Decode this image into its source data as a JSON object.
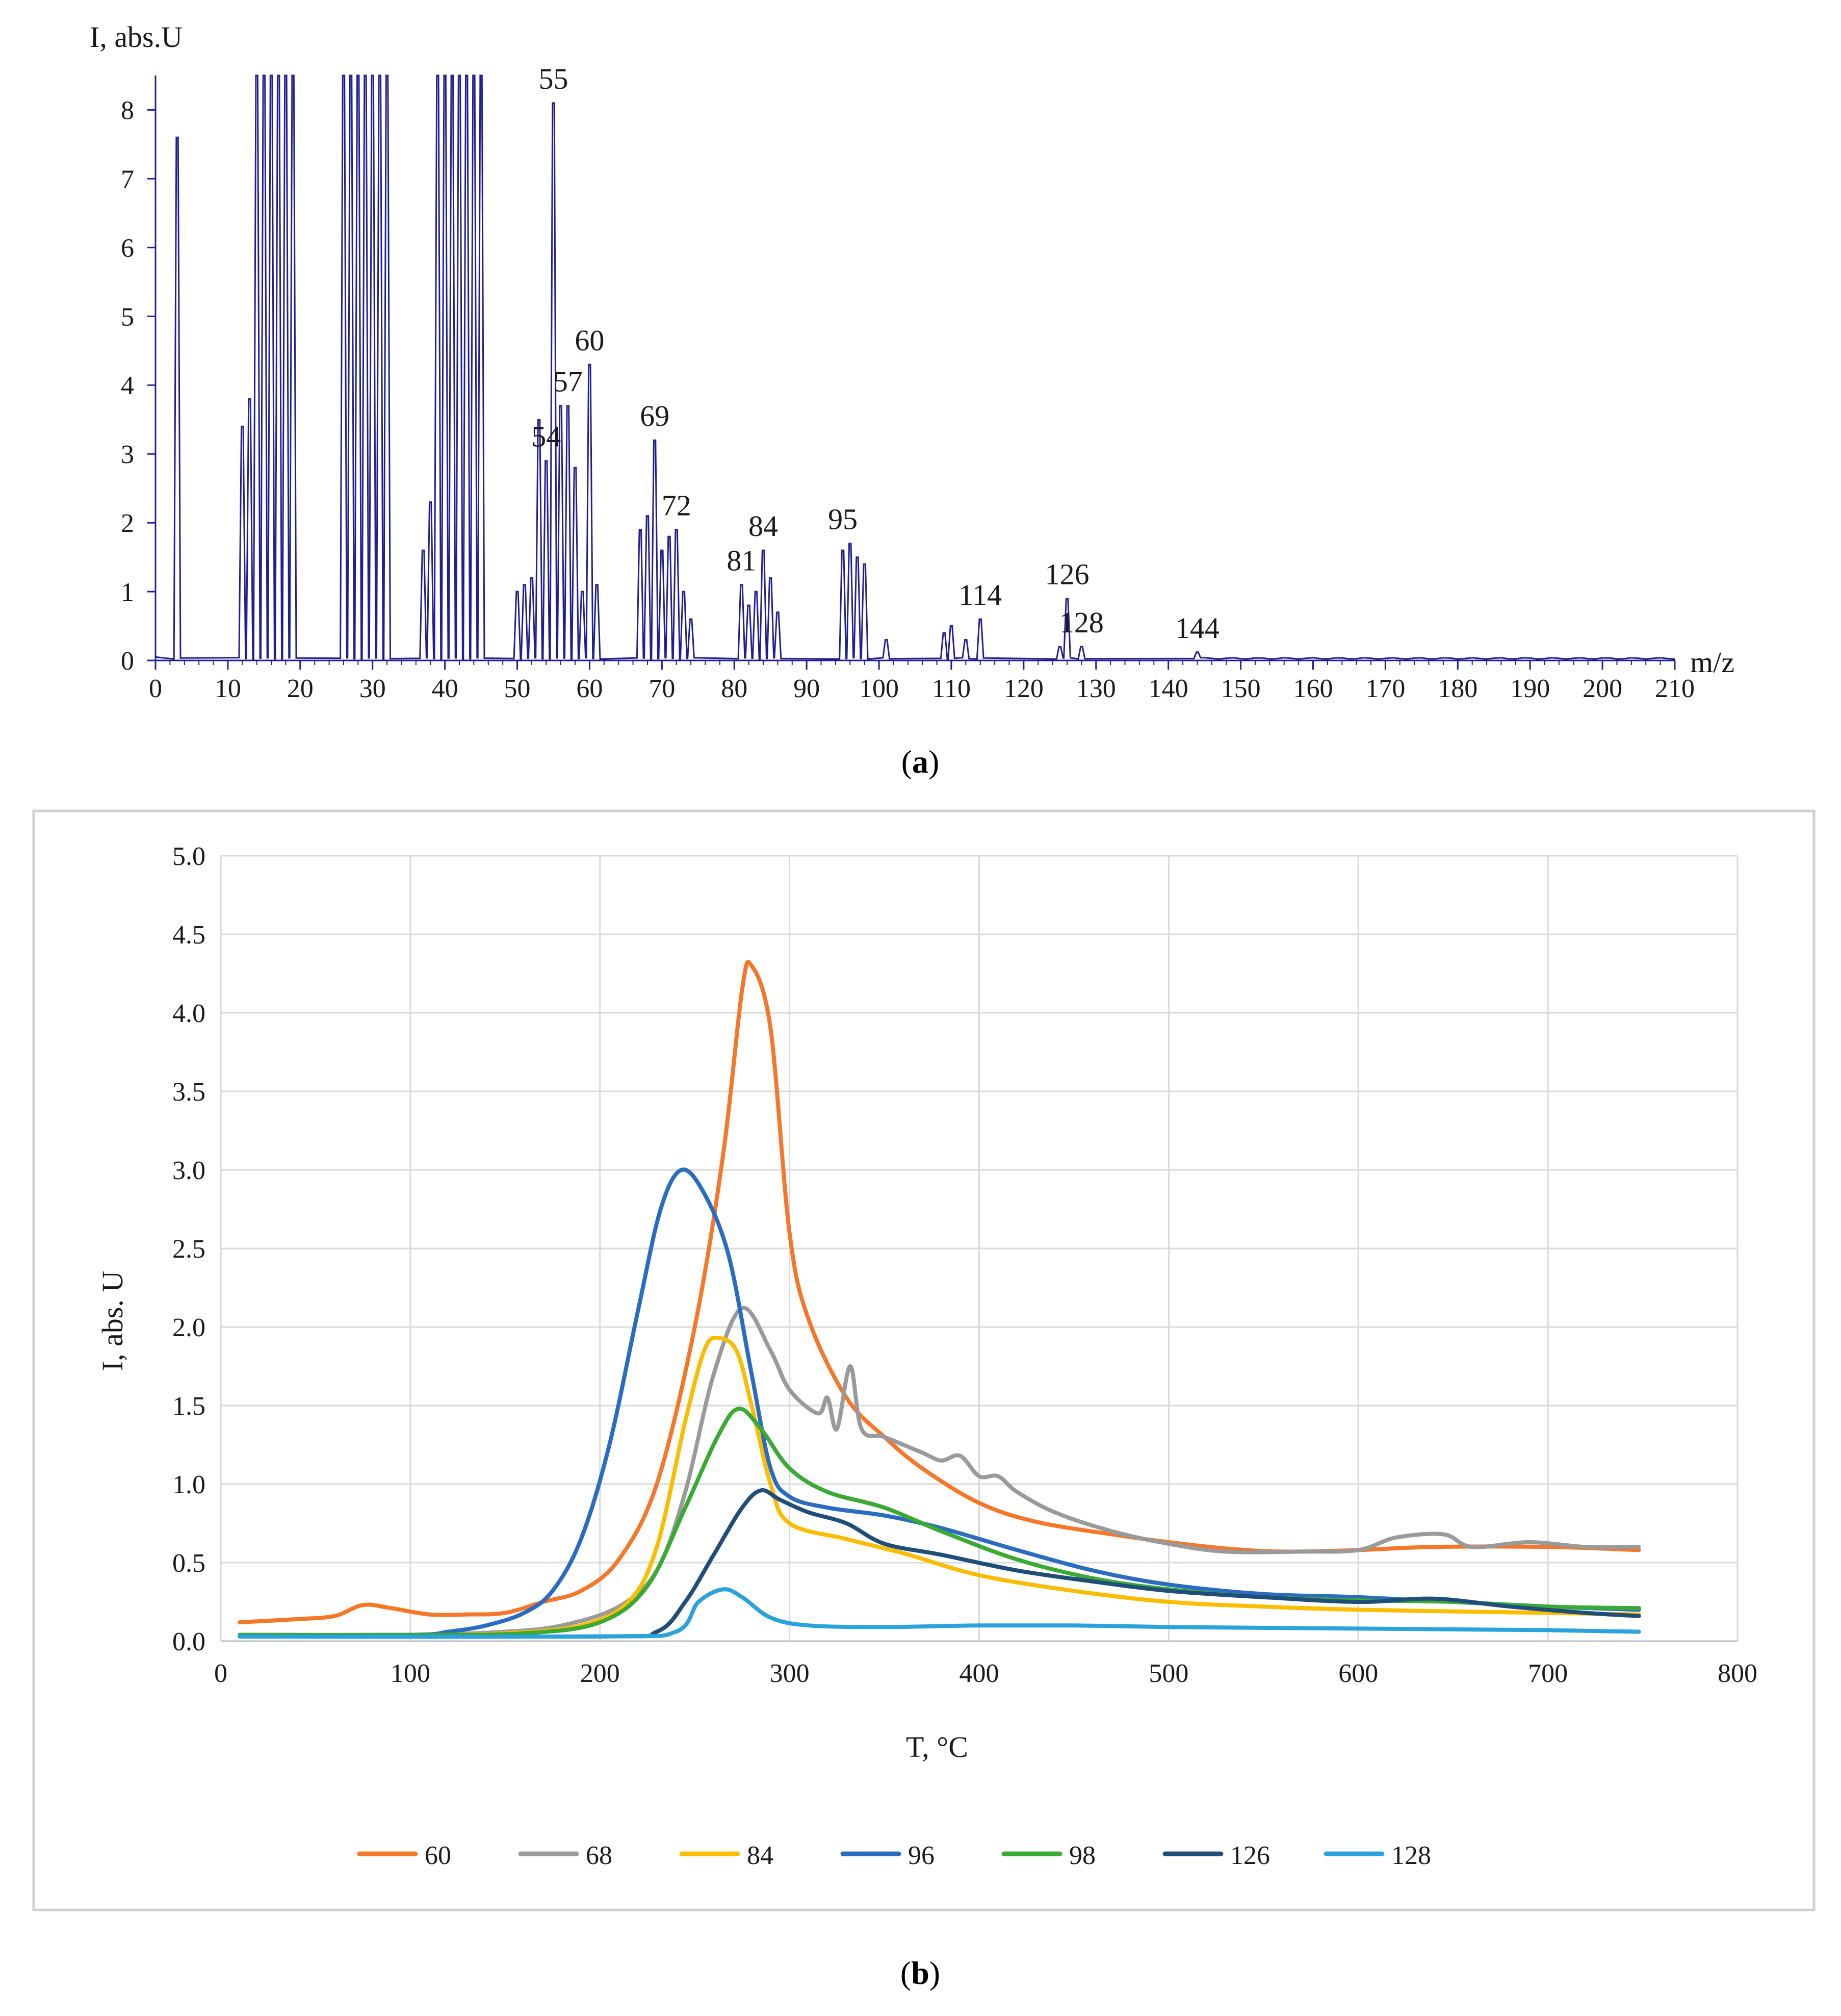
{
  "chart_data": [
    {
      "type": "line",
      "panel": "a",
      "caption_open": "(",
      "caption_letter": "a",
      "caption_close": ")",
      "title": "",
      "xlabel": "m/z",
      "ylabel": "I, abs.U",
      "xlim": [
        0,
        210
      ],
      "ylim": [
        0,
        8.5
      ],
      "xticks": [
        "0",
        "10",
        "20",
        "30",
        "40",
        "50",
        "60",
        "70",
        "80",
        "90",
        "100",
        "110",
        "120",
        "130",
        "140",
        "150",
        "160",
        "170",
        "180",
        "190",
        "200",
        "210"
      ],
      "yticks": [
        "0",
        "1",
        "2",
        "3",
        "4",
        "5",
        "6",
        "7",
        "8"
      ],
      "color": "#1f1f8f",
      "peaks": [
        [
          3,
          7.6
        ],
        [
          12,
          3.4
        ],
        [
          13,
          3.8
        ],
        [
          14,
          8.5
        ],
        [
          15,
          8.5
        ],
        [
          16,
          8.5
        ],
        [
          17,
          8.5
        ],
        [
          18,
          8.5
        ],
        [
          19,
          8.5
        ],
        [
          26,
          8.5
        ],
        [
          27,
          8.5
        ],
        [
          28,
          8.5
        ],
        [
          29,
          8.5
        ],
        [
          30,
          8.5
        ],
        [
          31,
          8.5
        ],
        [
          32,
          8.5
        ],
        [
          37,
          1.6
        ],
        [
          38,
          2.3
        ],
        [
          39,
          8.5
        ],
        [
          40,
          8.5
        ],
        [
          41,
          8.5
        ],
        [
          42,
          8.5
        ],
        [
          43,
          8.5
        ],
        [
          44,
          8.5
        ],
        [
          45,
          8.5
        ],
        [
          50,
          1.0
        ],
        [
          51,
          1.1
        ],
        [
          52,
          1.2
        ],
        [
          53,
          3.5
        ],
        [
          54,
          2.9
        ],
        [
          55,
          8.1
        ],
        [
          56,
          3.7
        ],
        [
          57,
          3.7
        ],
        [
          58,
          2.8
        ],
        [
          59,
          1.0
        ],
        [
          60,
          4.3
        ],
        [
          61,
          1.1
        ],
        [
          67,
          1.9
        ],
        [
          68,
          2.1
        ],
        [
          69,
          3.2
        ],
        [
          70,
          1.6
        ],
        [
          71,
          1.8
        ],
        [
          72,
          1.9
        ],
        [
          73,
          1.0
        ],
        [
          74,
          0.6
        ],
        [
          81,
          1.1
        ],
        [
          82,
          0.8
        ],
        [
          83,
          1.0
        ],
        [
          84,
          1.6
        ],
        [
          85,
          1.2
        ],
        [
          86,
          0.7
        ],
        [
          95,
          1.6
        ],
        [
          96,
          1.7
        ],
        [
          97,
          1.5
        ],
        [
          98,
          1.4
        ],
        [
          101,
          0.3
        ],
        [
          109,
          0.4
        ],
        [
          110,
          0.5
        ],
        [
          112,
          0.3
        ],
        [
          114,
          0.6
        ],
        [
          125,
          0.2
        ],
        [
          126,
          0.9
        ],
        [
          128,
          0.2
        ],
        [
          144,
          0.12
        ]
      ],
      "annotations": [
        {
          "label": "55",
          "x": 55,
          "y": 8.1
        },
        {
          "label": "60",
          "x": 60,
          "y": 4.3
        },
        {
          "label": "57",
          "x": 57,
          "y": 3.7
        },
        {
          "label": "54",
          "x": 54,
          "y": 2.9
        },
        {
          "label": "69",
          "x": 69,
          "y": 3.2
        },
        {
          "label": "72",
          "x": 72,
          "y": 1.9
        },
        {
          "label": "84",
          "x": 84,
          "y": 1.6
        },
        {
          "label": "81",
          "x": 81,
          "y": 1.1
        },
        {
          "label": "95",
          "x": 95,
          "y": 1.7
        },
        {
          "label": "114",
          "x": 114,
          "y": 0.6
        },
        {
          "label": "126",
          "x": 126,
          "y": 0.9
        },
        {
          "label": "128",
          "x": 128,
          "y": 0.2
        },
        {
          "label": "144",
          "x": 144,
          "y": 0.12
        }
      ]
    },
    {
      "type": "line",
      "panel": "b",
      "caption_open": "(",
      "caption_letter": "b",
      "caption_close": ")",
      "title": "",
      "xlabel": "T, °C",
      "ylabel": "I, abs. U",
      "xlim": [
        0,
        800
      ],
      "ylim": [
        0,
        5
      ],
      "xticks": [
        "0",
        "100",
        "200",
        "300",
        "400",
        "500",
        "600",
        "700",
        "800"
      ],
      "yticks": [
        "0.0",
        "0.5",
        "1.0",
        "1.5",
        "2.0",
        "2.5",
        "3.0",
        "3.5",
        "4.0",
        "4.5",
        "5.0"
      ],
      "grid": true,
      "legend_position": "bottom",
      "series": [
        {
          "name": "60",
          "color": "#f5782a",
          "points": [
            [
              10,
              0.12
            ],
            [
              40,
              0.14
            ],
            [
              60,
              0.16
            ],
            [
              75,
              0.23
            ],
            [
              90,
              0.21
            ],
            [
              110,
              0.17
            ],
            [
              130,
              0.17
            ],
            [
              150,
              0.18
            ],
            [
              170,
              0.25
            ],
            [
              190,
              0.32
            ],
            [
              210,
              0.52
            ],
            [
              230,
              1.0
            ],
            [
              250,
              2.0
            ],
            [
              265,
              3.1
            ],
            [
              275,
              4.15
            ],
            [
              280,
              4.3
            ],
            [
              290,
              3.9
            ],
            [
              300,
              2.6
            ],
            [
              310,
              2.05
            ],
            [
              330,
              1.55
            ],
            [
              350,
              1.3
            ],
            [
              370,
              1.1
            ],
            [
              400,
              0.88
            ],
            [
              430,
              0.76
            ],
            [
              470,
              0.68
            ],
            [
              500,
              0.63
            ],
            [
              530,
              0.59
            ],
            [
              560,
              0.57
            ],
            [
              600,
              0.58
            ],
            [
              640,
              0.6
            ],
            [
              700,
              0.6
            ],
            [
              748,
              0.58
            ]
          ]
        },
        {
          "name": "68",
          "color": "#9a9a9a",
          "points": [
            [
              10,
              0.04
            ],
            [
              100,
              0.04
            ],
            [
              150,
              0.06
            ],
            [
              180,
              0.1
            ],
            [
              210,
              0.22
            ],
            [
              230,
              0.45
            ],
            [
              245,
              0.95
            ],
            [
              260,
              1.7
            ],
            [
              275,
              2.12
            ],
            [
              290,
              1.85
            ],
            [
              300,
              1.6
            ],
            [
              315,
              1.45
            ],
            [
              320,
              1.55
            ],
            [
              325,
              1.35
            ],
            [
              332,
              1.75
            ],
            [
              338,
              1.35
            ],
            [
              350,
              1.3
            ],
            [
              370,
              1.2
            ],
            [
              380,
              1.15
            ],
            [
              390,
              1.18
            ],
            [
              400,
              1.05
            ],
            [
              410,
              1.05
            ],
            [
              420,
              0.95
            ],
            [
              440,
              0.82
            ],
            [
              470,
              0.7
            ],
            [
              500,
              0.62
            ],
            [
              530,
              0.57
            ],
            [
              570,
              0.57
            ],
            [
              600,
              0.58
            ],
            [
              620,
              0.66
            ],
            [
              645,
              0.68
            ],
            [
              660,
              0.6
            ],
            [
              690,
              0.63
            ],
            [
              720,
              0.6
            ],
            [
              748,
              0.6
            ]
          ]
        },
        {
          "name": "84",
          "color": "#fbbd00",
          "points": [
            [
              10,
              0.04
            ],
            [
              100,
              0.04
            ],
            [
              150,
              0.05
            ],
            [
              190,
              0.1
            ],
            [
              215,
              0.25
            ],
            [
              230,
              0.6
            ],
            [
              245,
              1.4
            ],
            [
              255,
              1.85
            ],
            [
              262,
              1.93
            ],
            [
              272,
              1.85
            ],
            [
              280,
              1.5
            ],
            [
              290,
              1.0
            ],
            [
              300,
              0.75
            ],
            [
              330,
              0.65
            ],
            [
              360,
              0.56
            ],
            [
              400,
              0.42
            ],
            [
              450,
              0.32
            ],
            [
              500,
              0.25
            ],
            [
              550,
              0.22
            ],
            [
              600,
              0.2
            ],
            [
              700,
              0.18
            ],
            [
              748,
              0.17
            ]
          ]
        },
        {
          "name": "96",
          "color": "#2a6cc0",
          "points": [
            [
              10,
              0.04
            ],
            [
              100,
              0.04
            ],
            [
              120,
              0.06
            ],
            [
              140,
              0.1
            ],
            [
              160,
              0.18
            ],
            [
              175,
              0.32
            ],
            [
              190,
              0.65
            ],
            [
              205,
              1.25
            ],
            [
              220,
              2.1
            ],
            [
              232,
              2.75
            ],
            [
              243,
              3.0
            ],
            [
              255,
              2.85
            ],
            [
              268,
              2.45
            ],
            [
              280,
              1.7
            ],
            [
              290,
              1.1
            ],
            [
              300,
              0.92
            ],
            [
              320,
              0.85
            ],
            [
              350,
              0.8
            ],
            [
              380,
              0.72
            ],
            [
              420,
              0.58
            ],
            [
              460,
              0.45
            ],
            [
              500,
              0.36
            ],
            [
              550,
              0.3
            ],
            [
              600,
              0.28
            ],
            [
              650,
              0.25
            ],
            [
              700,
              0.22
            ],
            [
              748,
              0.2
            ]
          ]
        },
        {
          "name": "98",
          "color": "#3aaa35",
          "points": [
            [
              10,
              0.04
            ],
            [
              100,
              0.04
            ],
            [
              160,
              0.05
            ],
            [
              200,
              0.12
            ],
            [
              225,
              0.35
            ],
            [
              245,
              0.85
            ],
            [
              262,
              1.3
            ],
            [
              273,
              1.48
            ],
            [
              285,
              1.35
            ],
            [
              300,
              1.1
            ],
            [
              320,
              0.95
            ],
            [
              350,
              0.85
            ],
            [
              380,
              0.7
            ],
            [
              420,
              0.52
            ],
            [
              460,
              0.4
            ],
            [
              500,
              0.33
            ],
            [
              550,
              0.28
            ],
            [
              600,
              0.26
            ],
            [
              650,
              0.25
            ],
            [
              700,
              0.22
            ],
            [
              748,
              0.21
            ]
          ]
        },
        {
          "name": "126",
          "color": "#1f4e79",
          "points": [
            [
              10,
              0.03
            ],
            [
              200,
              0.03
            ],
            [
              230,
              0.06
            ],
            [
              245,
              0.25
            ],
            [
              260,
              0.55
            ],
            [
              275,
              0.85
            ],
            [
              285,
              0.96
            ],
            [
              295,
              0.9
            ],
            [
              310,
              0.82
            ],
            [
              330,
              0.75
            ],
            [
              350,
              0.62
            ],
            [
              380,
              0.55
            ],
            [
              420,
              0.45
            ],
            [
              460,
              0.38
            ],
            [
              500,
              0.32
            ],
            [
              550,
              0.28
            ],
            [
              600,
              0.25
            ],
            [
              640,
              0.27
            ],
            [
              680,
              0.22
            ],
            [
              720,
              0.18
            ],
            [
              748,
              0.16
            ]
          ]
        },
        {
          "name": "128",
          "color": "#2aa3dd",
          "points": [
            [
              10,
              0.03
            ],
            [
              200,
              0.03
            ],
            [
              240,
              0.06
            ],
            [
              252,
              0.25
            ],
            [
              265,
              0.33
            ],
            [
              275,
              0.28
            ],
            [
              290,
              0.15
            ],
            [
              310,
              0.1
            ],
            [
              350,
              0.09
            ],
            [
              400,
              0.1
            ],
            [
              450,
              0.1
            ],
            [
              500,
              0.09
            ],
            [
              600,
              0.08
            ],
            [
              700,
              0.07
            ],
            [
              748,
              0.06
            ]
          ]
        }
      ]
    }
  ]
}
